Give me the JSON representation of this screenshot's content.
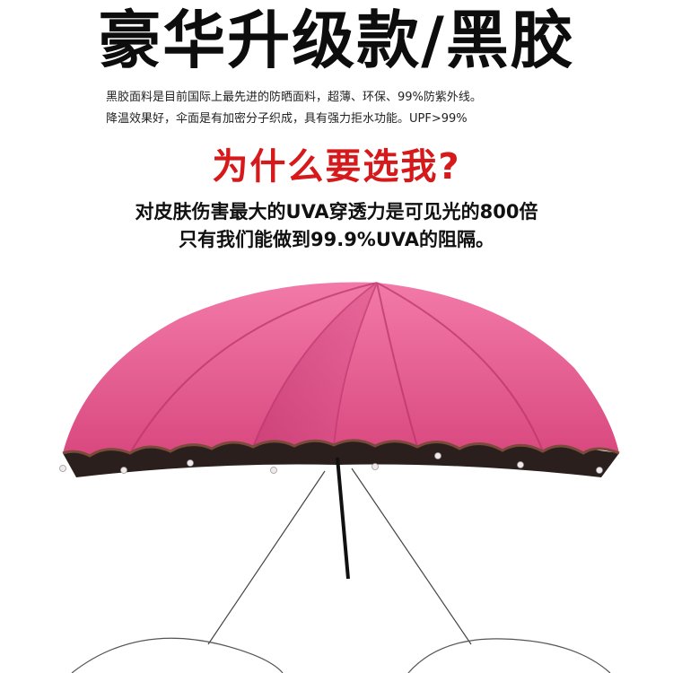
{
  "header": {
    "title": "豪华升级款/黑胶"
  },
  "description": {
    "line1": "黑胶面料是目前国际上最先进的防晒面料，超薄、环保、99%防紫外线。",
    "line2": "降温效果好，伞面是有加密分子织成，具有强力拒水功能。UPF>99%"
  },
  "feature": {
    "question": "为什么要选我?",
    "claim_line1": "对皮肤伤害最大的UVA穿透力是可见光的800倍",
    "claim_line2": "只有我们能做到99.9%UVA的阻隔。"
  },
  "colors": {
    "canopy": "#e45790",
    "canopy_shade": "#c73f78",
    "underside": "#2a1f1c",
    "accent_red": "#d6191b"
  }
}
